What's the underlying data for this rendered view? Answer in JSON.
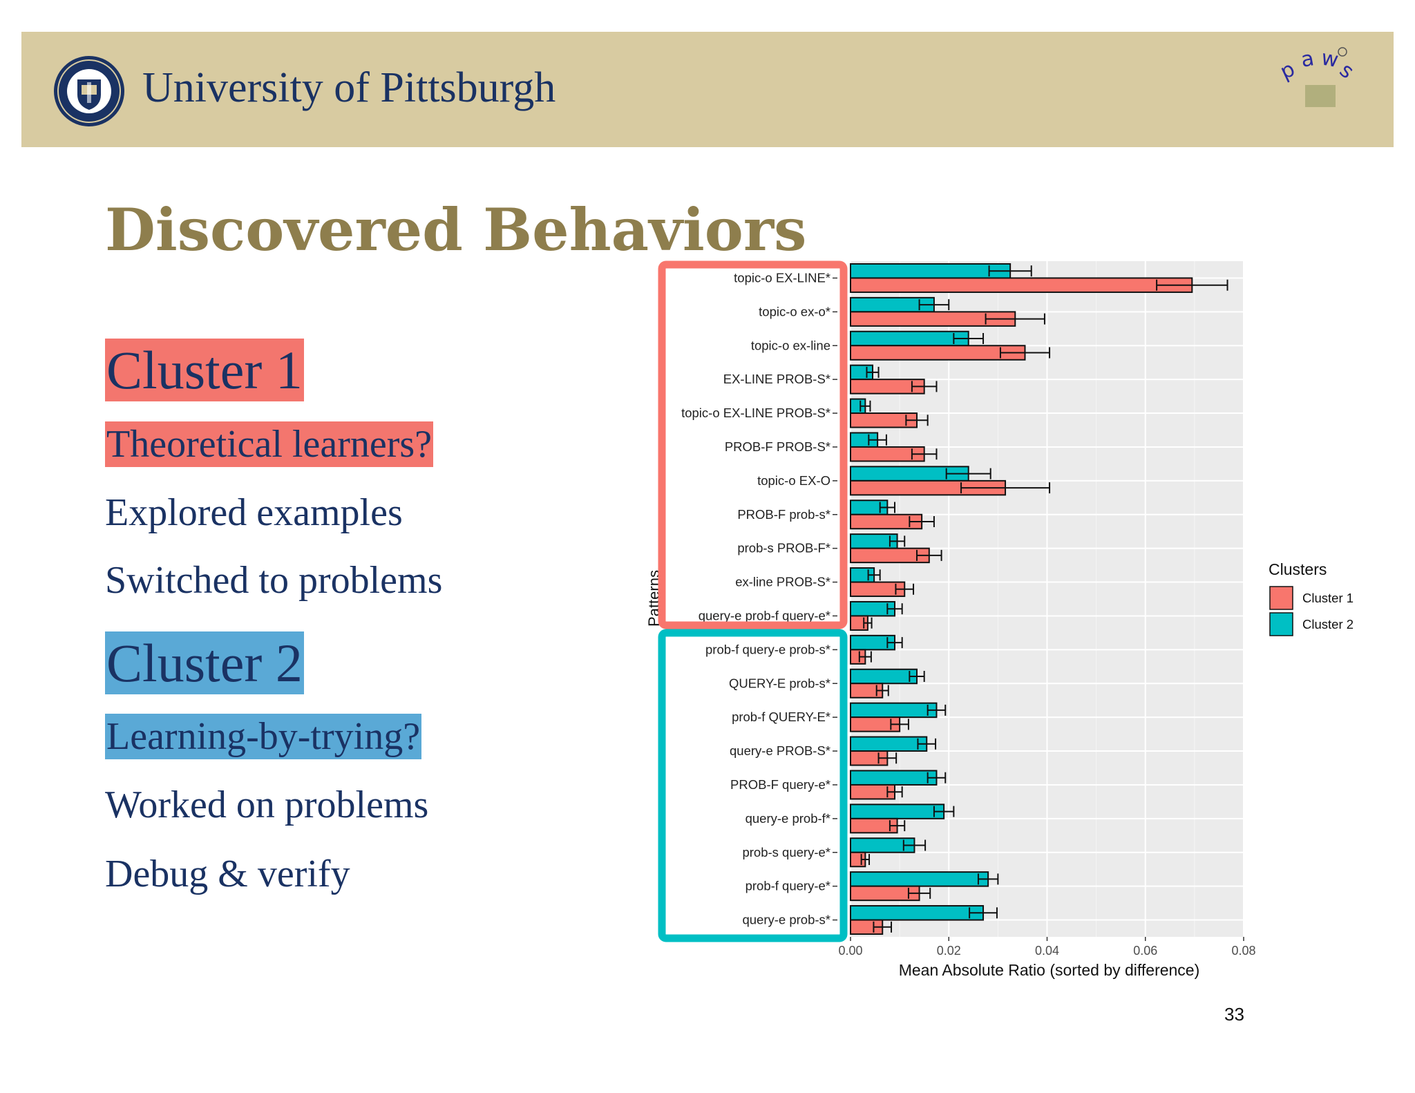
{
  "header": {
    "university": "University of Pittsburgh",
    "seal_icon": "university-of-pittsburgh-seal",
    "logo_icon": "paws-logo"
  },
  "slide": {
    "title": "Discovered Behaviors",
    "number": "33",
    "cluster1": {
      "heading": "Cluster 1",
      "subtitle": "Theoretical learners?",
      "points": [
        "Explored examples",
        "Switched to problems"
      ],
      "color": "#f3766e"
    },
    "cluster2": {
      "heading": "Cluster 2",
      "subtitle": "Learning-by-trying?",
      "points": [
        "Worked on problems",
        "Debug & verify"
      ],
      "color": "#5aa9d6"
    }
  },
  "chart_data": {
    "type": "bar",
    "orientation": "horizontal",
    "categories": [
      "topic-o EX-LINE*",
      "topic-o ex-o*",
      "topic-o ex-line",
      "EX-LINE PROB-S*",
      "topic-o EX-LINE PROB-S*",
      "PROB-F PROB-S*",
      "topic-o EX-O",
      "PROB-F prob-s*",
      "prob-s PROB-F*",
      "ex-line PROB-S*",
      "query-e prob-f query-e*",
      "prob-f query-e prob-s*",
      "QUERY-E prob-s*",
      "prob-f QUERY-E*",
      "query-e PROB-S*",
      "PROB-F query-e*",
      "query-e prob-f*",
      "prob-s query-e*",
      "prob-f query-e*",
      "query-e prob-s*"
    ],
    "series": [
      {
        "name": "Cluster 1",
        "color": "#f8766d",
        "values": [
          0.0695,
          0.0335,
          0.0355,
          0.015,
          0.0135,
          0.015,
          0.0315,
          0.0145,
          0.016,
          0.011,
          0.0035,
          0.003,
          0.0065,
          0.01,
          0.0075,
          0.009,
          0.0095,
          0.003,
          0.014,
          0.0065
        ],
        "error": [
          0.0072,
          0.006,
          0.005,
          0.0025,
          0.0022,
          0.0025,
          0.009,
          0.0025,
          0.0025,
          0.0018,
          0.0008,
          0.0012,
          0.0012,
          0.0018,
          0.0018,
          0.0015,
          0.0015,
          0.0008,
          0.0022,
          0.0018
        ]
      },
      {
        "name": "Cluster 2",
        "color": "#00bfc4",
        "values": [
          0.0325,
          0.017,
          0.024,
          0.0045,
          0.003,
          0.0055,
          0.024,
          0.0075,
          0.0095,
          0.0048,
          0.009,
          0.009,
          0.0135,
          0.0175,
          0.0155,
          0.0175,
          0.019,
          0.013,
          0.028,
          0.027
        ],
        "error": [
          0.0043,
          0.003,
          0.003,
          0.0012,
          0.001,
          0.0018,
          0.0045,
          0.0015,
          0.0015,
          0.0012,
          0.0015,
          0.0015,
          0.0015,
          0.0018,
          0.0018,
          0.0018,
          0.002,
          0.0022,
          0.002,
          0.0028
        ]
      }
    ],
    "xlabel": "Mean Absolute Ratio (sorted by difference)",
    "ylabel": "Patterns",
    "xlim": [
      0,
      0.08
    ],
    "xticks": [
      "0.00",
      "0.02",
      "0.04",
      "0.06",
      "0.08"
    ],
    "legend_title": "Clusters",
    "legend_position": "right",
    "grid": true,
    "highlight_groups": [
      {
        "range": [
          0,
          10
        ],
        "color": "#f8766d"
      },
      {
        "range": [
          11,
          19
        ],
        "color": "#00bfc4"
      }
    ]
  }
}
